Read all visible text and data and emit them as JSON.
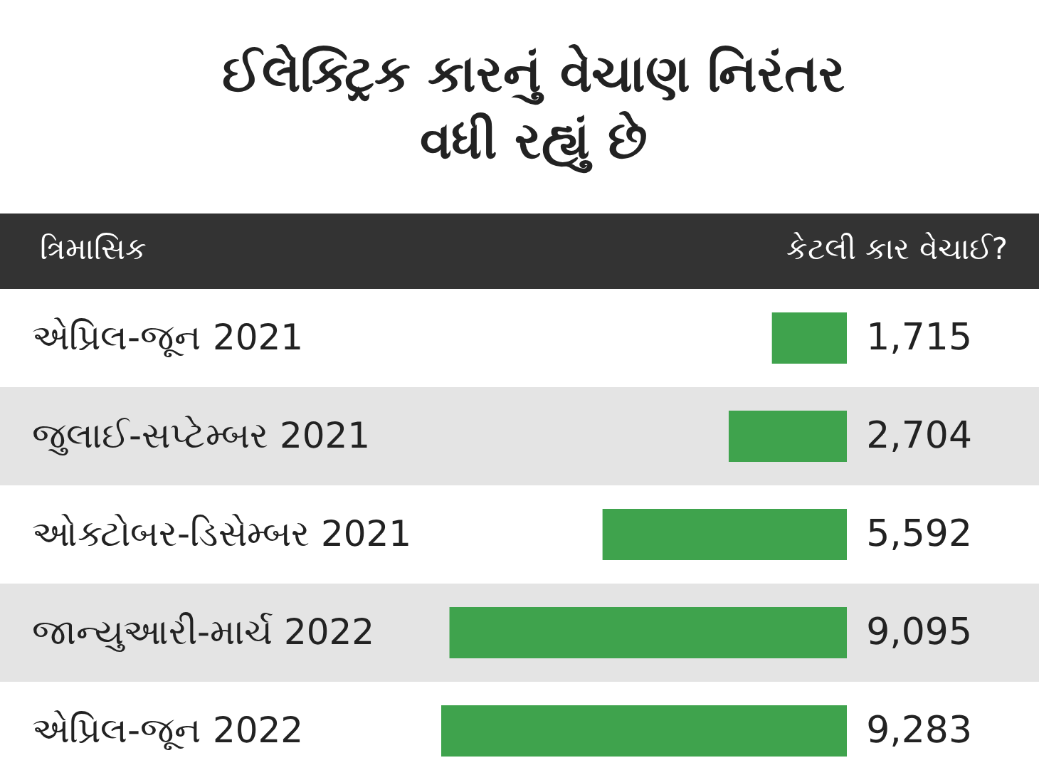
{
  "chart_data": {
    "type": "bar",
    "title": "ઈલેક્ટ્રિક કારનું વેચાણ નિરંતર વધી રહ્યું છે",
    "ylabel": "ત્રિમાસિક",
    "xlabel": "કેટલી કાર વેચાઈ?",
    "orientation": "horizontal",
    "categories": [
      "એપ્રિલ-જૂન 2021",
      "જુલાઈ-સપ્ટેમ્બર 2021",
      "ઓક્ટોબર-ડિસેમ્બર 2021",
      "જાન્યુઆરી-માર્ચ 2022",
      "એપ્રિલ-જૂન 2022"
    ],
    "values": [
      1715,
      2704,
      5592,
      9095,
      9283
    ],
    "value_labels": [
      "1,715",
      "2,704",
      "5,592",
      "9,095",
      "9,283"
    ],
    "color": "#3fa34d"
  }
}
